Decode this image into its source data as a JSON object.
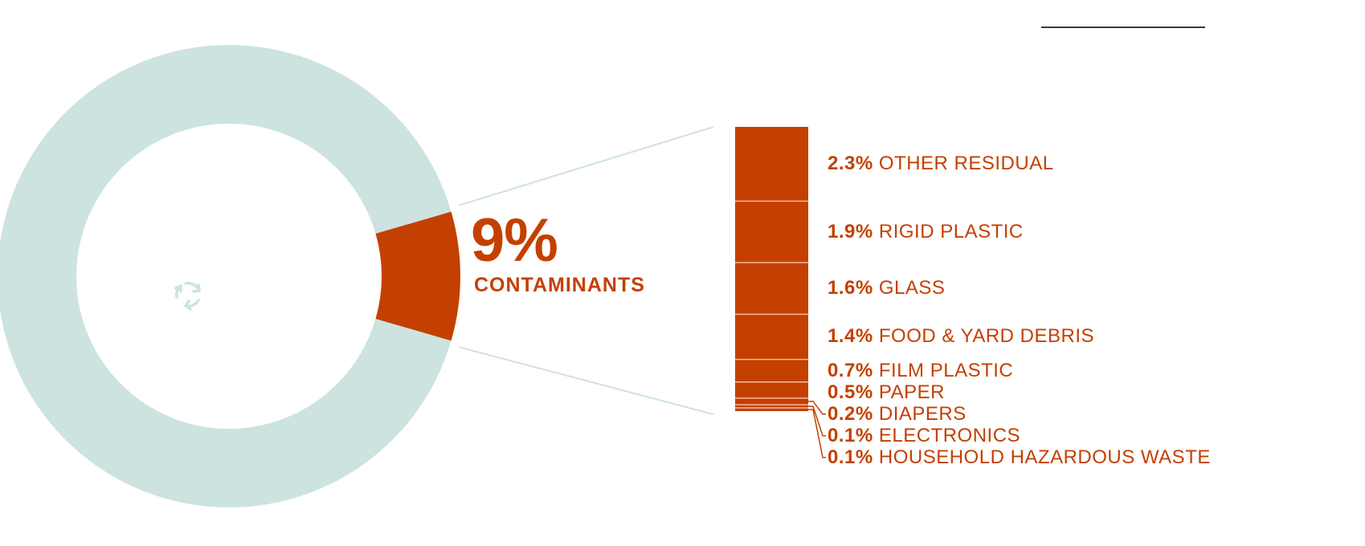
{
  "colors": {
    "ring": "#cde3e0",
    "contaminant": "#c44000",
    "icon": "#ffffff",
    "leader_line": "#cfe3e0",
    "rule": "#3a3a3a",
    "separator": "#f3b899"
  },
  "icons": [
    "recycling-bin-icon",
    "person-icon",
    "recycle-arrows-icon"
  ],
  "headline": {
    "value": "9%",
    "label": "CONTAMINANTS"
  },
  "chart_data": {
    "type": "pie",
    "variant": "donut with stacked-bar breakout",
    "slices": [
      {
        "value": 91
      },
      {
        "label": "CONTAMINANTS",
        "value": 9
      }
    ],
    "breakdown": {
      "categories": [
        "OTHER RESIDUAL",
        "RIGID PLASTIC",
        "GLASS",
        "FOOD & YARD DEBRIS",
        "FILM PLASTIC",
        "PAPER",
        "DIAPERS",
        "ELECTRONICS",
        "HOUSEHOLD HAZARDOUS WASTE"
      ],
      "values": [
        2.3,
        1.9,
        1.6,
        1.4,
        0.7,
        0.5,
        0.2,
        0.1,
        0.1
      ],
      "value_labels": [
        "2.3%",
        "1.9%",
        "1.6%",
        "1.4%",
        "0.7%",
        "0.5%",
        "0.2%",
        "0.1%",
        "0.1%"
      ]
    }
  }
}
